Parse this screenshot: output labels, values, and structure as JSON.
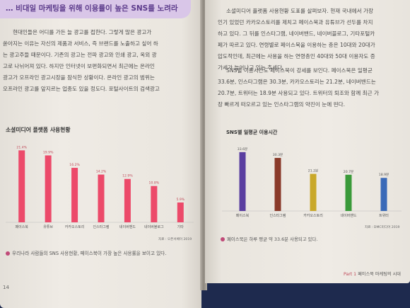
{
  "left_page": {
    "banner_title": "… 비대일 마케팅을 위해 이용률이 높은 SNS를 노려라",
    "paragraph_lines": [
      "현대인들은 어디를 가든 늘 광고를 접한다. 그렇게 많은 광고가",
      "쏟아지는 이유는 자신의 제품과 서비스, 즉 브랜드를 노출하고 싶어 하",
      "는 광고주들 때문이다. 기존의 광고는 전파 광고와 인쇄 광고, 옥외 광",
      "고로 나뉘어져 있다. 하지만 인터넷이 보편화되면서 최근에는 온라인",
      "광고가 오프라인 광고시장을 잠식한 상황이다. 온라인 광고의 범위는",
      "오프라인 광고를 앞지르는 업종도 있을 정도다. 포털사이트의 검색광고"
    ],
    "chart_title": "소셜미디어 플랫폼 사용현황",
    "chart_source": "자료 : 오픈서베이 2019",
    "caption": "우리나라 사람들의 SNS 사용현황, 페이스북이 가장 높은 사용률을 보이고 있다.",
    "page_number": "14"
  },
  "right_page": {
    "paragraph_lines": [
      "소셜미디어 플랫폼 사용현황 도표를 살펴보자. 현재 국내에서 가장",
      "인기 있었던 카카오스토리를 제치고 페이스북과 유튜브가 선두를 차지",
      "하고 있다. 그 뒤를 인스타그램, 네이버밴드, 네이버블로그, 기타포털카",
      "페가 따르고 있다. 연령별로 페이스북을 이용하는 층은 10대와 20대가",
      "압도적인데, 최근에는 사용을 하는 연령층인 40대와 50대 이용자도 증",
      "가세가 늘어나고 있는 추세다."
    ],
    "paragraph2_lines": [
      "SNS별 이용시간도 페이스북이 강세를 보인다. 페이스북은 일평균",
      "33.6분, 인스타그램은 30.3분, 카카오스토리는 21.2분, 네이버밴드는",
      "20.7분, 트위터는 18.9분 사용되고 있다. 트위터의 퇴조와 함께 최근 가",
      "장 빠르게 떠오르고 있는 인스타그램의 약진이 눈에 띈다."
    ],
    "chart_title": "SNS별 일평균 이용시간",
    "chart_source": "자료 : DMC미디어 2019",
    "caption": "페이스북은 하루 평균 약 33.6분 사용되고 있다.",
    "footer_part": "Part 1",
    "footer_title": "페이스북 마케팅의 시대"
  },
  "chart_data": [
    {
      "type": "bar",
      "title": "소셜미디어 플랫폼 사용현황",
      "categories": [
        "페이스북",
        "유튜브",
        "카카오스토리",
        "인스타그램",
        "네이버밴드",
        "네이버블로그",
        "기타"
      ],
      "values": [
        21.4,
        19.9,
        16.2,
        14.2,
        12.9,
        10.8,
        5.9
      ],
      "value_labels": [
        "21.4%",
        "19.9%",
        "16.2%",
        "14.2%",
        "12.9%",
        "10.8%",
        "5.9%"
      ],
      "ylim": [
        0,
        24
      ],
      "grid": false,
      "colors": [
        "#ec4a6a"
      ]
    },
    {
      "type": "bar",
      "title": "SNS별 일평균 이용시간",
      "categories": [
        "페이스북",
        "인스타그램",
        "카카오스토리",
        "네이버밴드",
        "트위터"
      ],
      "values": [
        33.6,
        30.3,
        21.2,
        20.7,
        18.9
      ],
      "value_labels": [
        "33.6분",
        "30.3분",
        "21.2분",
        "20.7분",
        "18.9분"
      ],
      "ylim": [
        0,
        38
      ],
      "grid": false,
      "colors": [
        "#5a3ea0",
        "#8a3a2a",
        "#c9a82a",
        "#3a9a3a",
        "#3a6ab8"
      ]
    }
  ]
}
